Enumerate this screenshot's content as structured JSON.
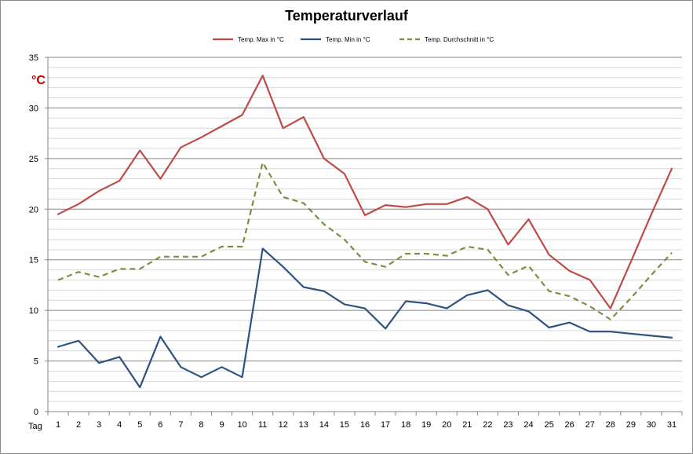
{
  "chart_data": {
    "type": "line",
    "title": "Temperaturverlauf",
    "ylabel": "°C",
    "xlabel": "Tag",
    "ylim": [
      0,
      35
    ],
    "y_ticks": [
      0,
      5,
      10,
      15,
      20,
      25,
      30,
      35
    ],
    "grid": "horizontal (major and minor)",
    "legend_position": "top",
    "x": [
      1,
      2,
      3,
      4,
      5,
      6,
      7,
      8,
      9,
      10,
      11,
      12,
      13,
      14,
      15,
      16,
      17,
      18,
      19,
      20,
      21,
      22,
      23,
      24,
      25,
      26,
      27,
      28,
      29,
      30,
      31
    ],
    "series": [
      {
        "name": "Temp. Max in °C",
        "color": "#be4b48",
        "style": "solid",
        "values": [
          19.5,
          20.5,
          21.8,
          22.8,
          25.8,
          23.0,
          26.1,
          27.1,
          28.2,
          29.3,
          33.2,
          28.0,
          29.1,
          25.0,
          23.5,
          19.4,
          20.4,
          20.2,
          20.5,
          20.5,
          21.2,
          20.0,
          16.5,
          19.0,
          15.5,
          13.9,
          13.0,
          10.2,
          14.8,
          19.5,
          24.0
        ]
      },
      {
        "name": "Temp. Min in °C",
        "color": "#2e5383",
        "style": "solid",
        "values": [
          6.4,
          7.0,
          4.8,
          5.4,
          2.4,
          7.4,
          4.4,
          3.4,
          4.4,
          3.4,
          16.1,
          14.3,
          12.3,
          11.9,
          10.6,
          10.2,
          8.2,
          10.9,
          10.7,
          10.2,
          11.5,
          12.0,
          10.5,
          9.9,
          8.3,
          8.8,
          7.9,
          7.9,
          7.7,
          7.5,
          7.3
        ]
      },
      {
        "name": "Temp. Durchschnitt in °C",
        "color": "#76923c",
        "style": "dashed",
        "values": [
          13.0,
          13.8,
          13.3,
          14.1,
          14.1,
          15.3,
          15.3,
          15.3,
          16.3,
          16.3,
          24.6,
          21.2,
          20.6,
          18.5,
          17.0,
          14.8,
          14.3,
          15.6,
          15.6,
          15.4,
          16.3,
          16.0,
          13.5,
          14.4,
          11.9,
          11.4,
          10.4,
          9.1,
          11.2,
          13.5,
          15.7
        ]
      }
    ]
  }
}
